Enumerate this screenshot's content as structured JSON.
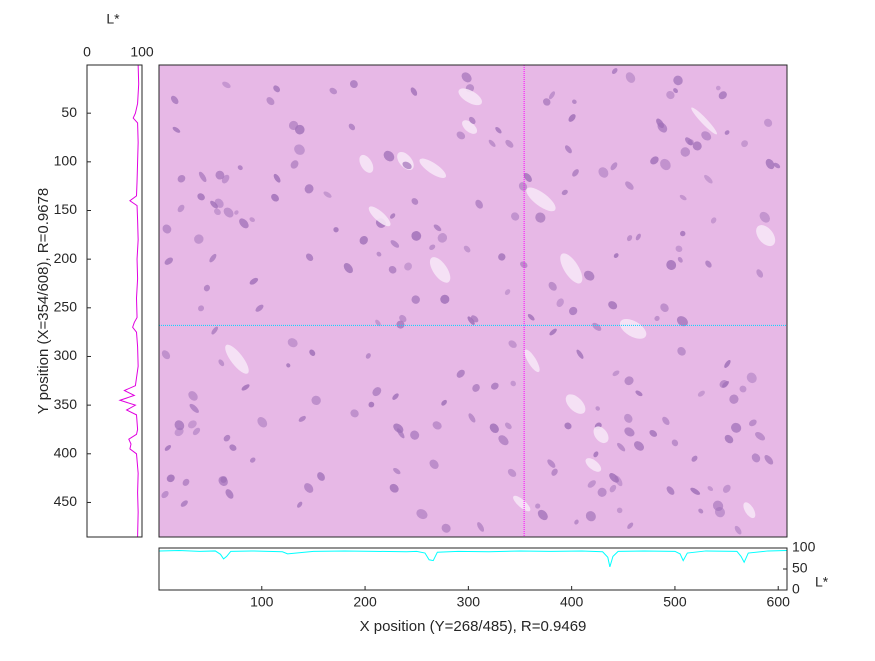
{
  "chart_data": [
    {
      "type": "image",
      "xlim": [
        0.5,
        608.5
      ],
      "ylim": [
        0.5,
        485.5
      ],
      "background": "#e7b8e6",
      "cell_color": "#a070b8",
      "crosshair": {
        "x": 354,
        "y": 268,
        "x_color": "#ff00ff",
        "y_color": "#00d8ff"
      }
    },
    {
      "type": "line",
      "orientation": "horizontal",
      "xlabel": "X position (Y=268/485), R=0.9469",
      "ylabel": "L*",
      "xlim": [
        0.5,
        608.5
      ],
      "xticks": [
        100,
        200,
        300,
        400,
        500,
        600
      ],
      "ylim": [
        0,
        100
      ],
      "yticks": [
        0,
        50,
        100
      ],
      "series": [
        {
          "color": "#00ffff",
          "x": [
            1,
            20,
            40,
            55,
            60,
            63,
            66,
            70,
            90,
            120,
            125,
            150,
            180,
            210,
            240,
            250,
            258,
            262,
            266,
            270,
            290,
            320,
            350,
            380,
            410,
            430,
            435,
            437,
            440,
            445,
            470,
            500,
            505,
            508,
            512,
            530,
            560,
            564,
            567,
            571,
            590,
            608
          ],
          "values": [
            93,
            94,
            92,
            93,
            85,
            74,
            80,
            92,
            93,
            91,
            86,
            92,
            93,
            92,
            91,
            92,
            88,
            72,
            70,
            90,
            92,
            91,
            93,
            92,
            93,
            91,
            78,
            55,
            80,
            92,
            93,
            92,
            86,
            70,
            88,
            93,
            92,
            80,
            66,
            88,
            93,
            94
          ]
        }
      ]
    },
    {
      "type": "line",
      "orientation": "vertical",
      "title": "L*",
      "ylabel": "Y position (X=354/608), R=0.9678",
      "xlim": [
        0,
        100
      ],
      "xticks": [
        0,
        100
      ],
      "ylim": [
        0.5,
        485.5
      ],
      "yticks": [
        50,
        100,
        150,
        200,
        250,
        300,
        350,
        400,
        450
      ],
      "series": [
        {
          "color": "#e000e0",
          "y": [
            1,
            20,
            40,
            50,
            55,
            60,
            80,
            100,
            120,
            135,
            140,
            145,
            160,
            180,
            200,
            220,
            240,
            260,
            265,
            270,
            275,
            290,
            310,
            330,
            335,
            340,
            345,
            350,
            355,
            360,
            375,
            380,
            385,
            390,
            395,
            400,
            420,
            440,
            460,
            485
          ],
          "values": [
            93,
            94,
            92,
            88,
            84,
            92,
            93,
            92,
            91,
            90,
            78,
            91,
            92,
            93,
            91,
            92,
            90,
            91,
            86,
            83,
            90,
            92,
            93,
            88,
            68,
            86,
            60,
            88,
            72,
            90,
            92,
            90,
            76,
            80,
            78,
            90,
            93,
            92,
            93,
            92
          ]
        }
      ]
    }
  ]
}
